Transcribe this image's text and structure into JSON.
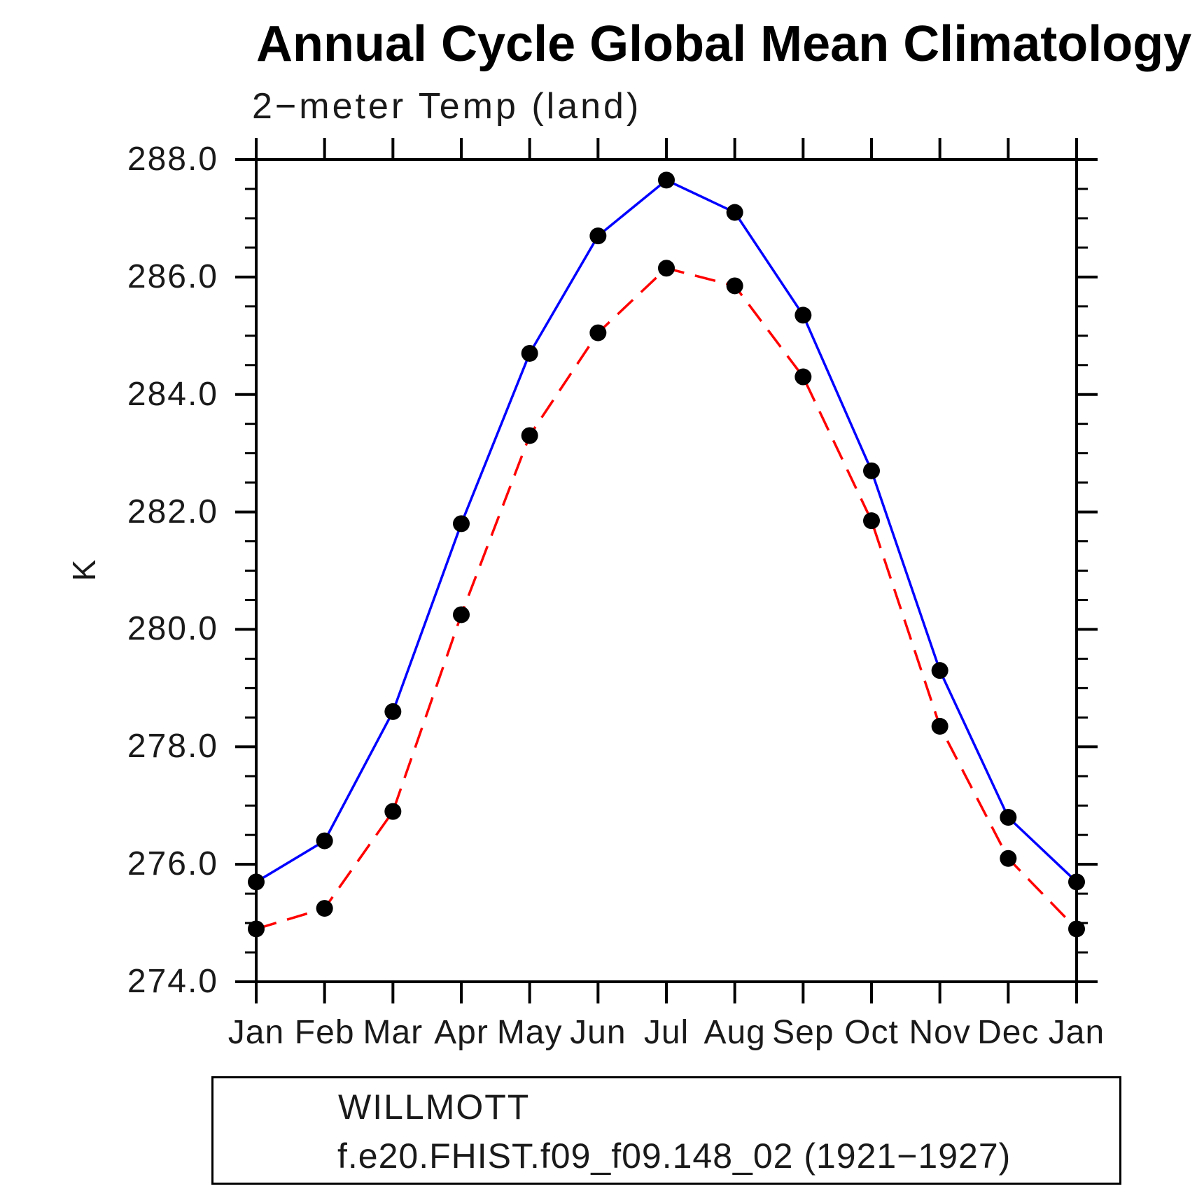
{
  "title": "Annual Cycle Global Mean Climatology",
  "subtitle": "2−meter Temp (land)",
  "y_axis": {
    "label": "K",
    "tick_labels": [
      "288.0",
      "286.0",
      "284.0",
      "282.0",
      "280.0",
      "278.0",
      "276.0",
      "274.0"
    ],
    "tick_values": [
      288,
      286,
      284,
      282,
      280,
      278,
      276,
      274
    ],
    "minor_step": 0.5,
    "range": [
      274,
      288
    ]
  },
  "x_axis": {
    "tick_labels": [
      "Jan",
      "Feb",
      "Mar",
      "Apr",
      "May",
      "Jun",
      "Jul",
      "Aug",
      "Sep",
      "Oct",
      "Nov",
      "Dec",
      "Jan"
    ]
  },
  "legend": {
    "entries": [
      {
        "label": "WILLMOTT",
        "color": "#0000ff",
        "style": "solid",
        "marker": "black-dot"
      },
      {
        "label": "f.e20.FHIST.f09_f09.148_02 (1921−1927)",
        "color": "#ff0000",
        "style": "dashed",
        "marker": "black-dot"
      }
    ]
  },
  "colors": {
    "obs_line": "#0000ff",
    "model_line": "#ff0000",
    "marker": "#000000",
    "axis": "#000000",
    "background": "#ffffff"
  },
  "chart_data": {
    "type": "line",
    "title": "Annual Cycle Global Mean Climatology",
    "subtitle": "2−meter Temp (land)",
    "ylabel": "K",
    "categories": [
      "Jan",
      "Feb",
      "Mar",
      "Apr",
      "May",
      "Jun",
      "Jul",
      "Aug",
      "Sep",
      "Oct",
      "Nov",
      "Dec",
      "Jan"
    ],
    "series": [
      {
        "name": "WILLMOTT",
        "color": "#0000ff",
        "style": "solid",
        "values": [
          275.7,
          276.4,
          278.6,
          281.8,
          284.7,
          286.7,
          287.65,
          287.1,
          285.35,
          282.7,
          279.3,
          276.8,
          275.7
        ]
      },
      {
        "name": "f.e20.FHIST.f09_f09.148_02 (1921−1927)",
        "color": "#ff0000",
        "style": "dashed",
        "values": [
          274.9,
          275.25,
          276.9,
          280.25,
          283.3,
          285.05,
          286.15,
          285.85,
          284.3,
          281.85,
          278.35,
          276.1,
          274.9
        ]
      }
    ],
    "ylim": [
      274.0,
      288.0
    ],
    "ytick_interval": 2.0,
    "ytick_minor_interval": 0.5,
    "grid": false,
    "legend_position": "bottom"
  }
}
